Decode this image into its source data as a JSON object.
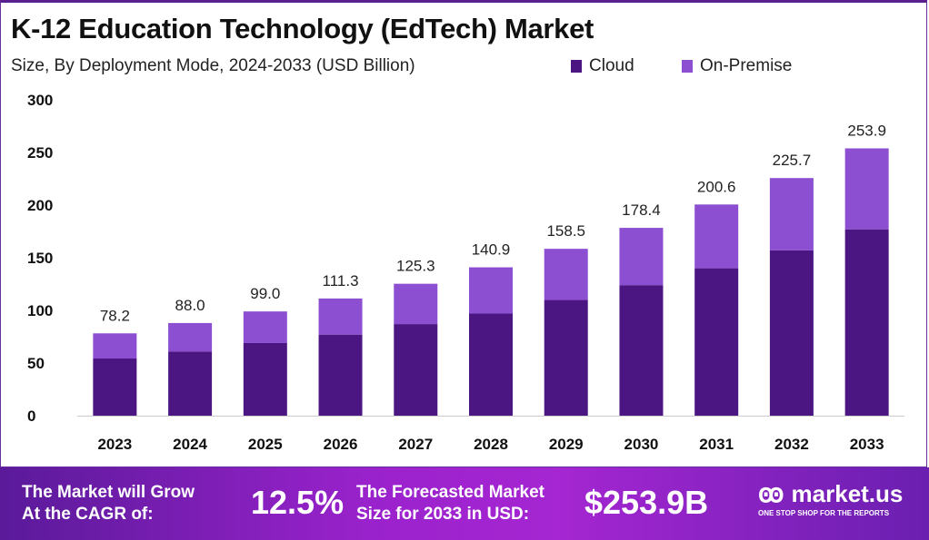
{
  "chart_data": {
    "type": "bar",
    "stacked": true,
    "title": "K-12 Education Technology (EdTech) Market",
    "subtitle": "Size, By Deployment Mode, 2024-2033 (USD Billion)",
    "categories": [
      "2023",
      "2024",
      "2025",
      "2026",
      "2027",
      "2028",
      "2029",
      "2030",
      "2031",
      "2032",
      "2033"
    ],
    "series": [
      {
        "name": "Cloud",
        "color": "#4b1682",
        "values": [
          54.3,
          61.0,
          69.0,
          77.0,
          87.0,
          97.0,
          110.0,
          124.0,
          140.0,
          157.0,
          177.0
        ]
      },
      {
        "name": "On-Premise",
        "color": "#8d4fd2",
        "values": [
          23.9,
          27.0,
          30.0,
          34.3,
          38.3,
          43.9,
          48.5,
          54.4,
          60.6,
          68.7,
          76.9
        ]
      }
    ],
    "totals": [
      "78.2",
      "88.0",
      "99.0",
      "111.3",
      "125.3",
      "140.9",
      "158.5",
      "178.4",
      "200.6",
      "225.7",
      "253.9"
    ],
    "ylim": [
      0,
      300
    ],
    "yticks": [
      "0",
      "50",
      "100",
      "150",
      "200",
      "250",
      "300"
    ],
    "grid": false,
    "legend_position": "top-right"
  },
  "footer": {
    "cagr_label_1": "The Market will Grow",
    "cagr_label_2": "At the CAGR of:",
    "cagr_value": "12.5%",
    "forecast_label_1": "The Forecasted Market",
    "forecast_label_2": "Size for 2033 in USD:",
    "forecast_value": "$253.9B",
    "logo_name": "market.us",
    "logo_tagline": "ONE STOP SHOP FOR THE REPORTS"
  }
}
